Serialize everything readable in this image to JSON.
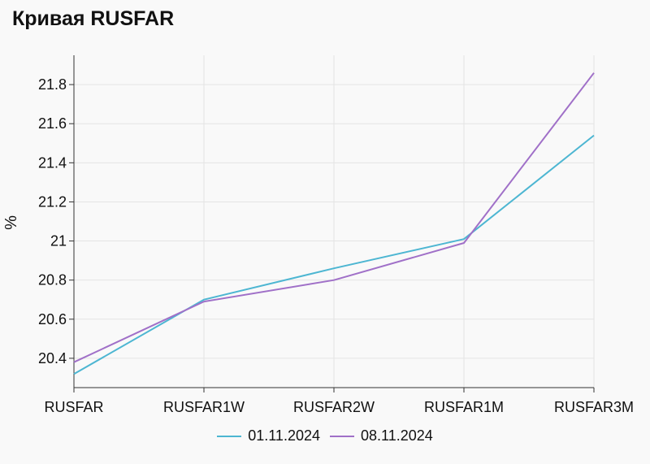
{
  "chart_data": {
    "type": "line",
    "title": "Кривая RUSFAR",
    "xlabel": "",
    "ylabel": "%",
    "categories": [
      "RUSFAR",
      "RUSFAR1W",
      "RUSFAR2W",
      "RUSFAR1M",
      "RUSFAR3M"
    ],
    "ylim": [
      20.25,
      21.95
    ],
    "yticks": [
      20.4,
      20.6,
      20.8,
      21.0,
      21.2,
      21.4,
      21.6,
      21.8
    ],
    "ytick_labels": [
      "20.4",
      "20.6",
      "20.8",
      "21",
      "21.2",
      "21.4",
      "21.6",
      "21.8"
    ],
    "grid": true,
    "legend_position": "bottom",
    "series": [
      {
        "name": "01.11.2024",
        "color": "#4db6d2",
        "values": [
          20.32,
          20.7,
          20.86,
          21.01,
          21.54
        ]
      },
      {
        "name": "08.11.2024",
        "color": "#a070c8",
        "values": [
          20.38,
          20.69,
          20.8,
          20.99,
          21.86
        ]
      }
    ]
  }
}
